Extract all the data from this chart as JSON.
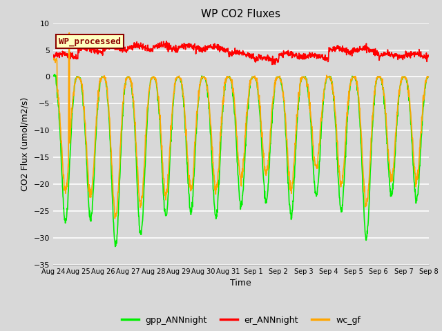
{
  "title": "WP CO2 Fluxes",
  "xlabel": "Time",
  "ylabel": "CO2 Flux (umol/m2/s)",
  "ylim": [
    -35,
    10
  ],
  "yticks": [
    -35,
    -30,
    -25,
    -20,
    -15,
    -10,
    -5,
    0,
    5,
    10
  ],
  "annotation_text": "WP_processed",
  "annotation_color": "#8B0000",
  "annotation_bg": "#FFFFC0",
  "annotation_edge": "#8B0000",
  "line_colors": {
    "gpp": "#00EE00",
    "er": "#FF0000",
    "wc": "#FFA500"
  },
  "legend_labels": [
    "gpp_ANNnight",
    "er_ANNnight",
    "wc_gf"
  ],
  "fig_bg": "#D8D8D8",
  "plot_bg": "#D8D8D8",
  "grid_color": "#FFFFFF",
  "n_days": 15,
  "points_per_day": 96,
  "xtick_labels": [
    "Aug 24",
    "Aug 25",
    "Aug 26",
    "Aug 27",
    "Aug 28",
    "Aug 29",
    "Aug 30",
    "Aug 31",
    "Sep 1",
    "Sep 2",
    "Sep 3",
    "Sep 4",
    "Sep 5",
    "Sep 6",
    "Sep 7",
    "Sep 8"
  ],
  "gpp_day_mins": [
    -27,
    -26.5,
    -31.5,
    -29.5,
    -26,
    -25,
    -26,
    -24,
    -23,
    -26,
    -22,
    -25,
    -30,
    -22,
    -23
  ],
  "wc_day_mins": [
    -21,
    -22,
    -26,
    -24,
    -22,
    -21,
    -21,
    -19,
    -18,
    -21,
    -17,
    -20,
    -24,
    -19,
    -19
  ],
  "er_day_vals": [
    3.5,
    4.5,
    4.8,
    5.0,
    5.0,
    5.0,
    4.8,
    3.8,
    2.8,
    3.5,
    3.2,
    4.5,
    4.5,
    3.5,
    3.5
  ],
  "wc_peak_val": 8.2,
  "linewidth": 1.2
}
